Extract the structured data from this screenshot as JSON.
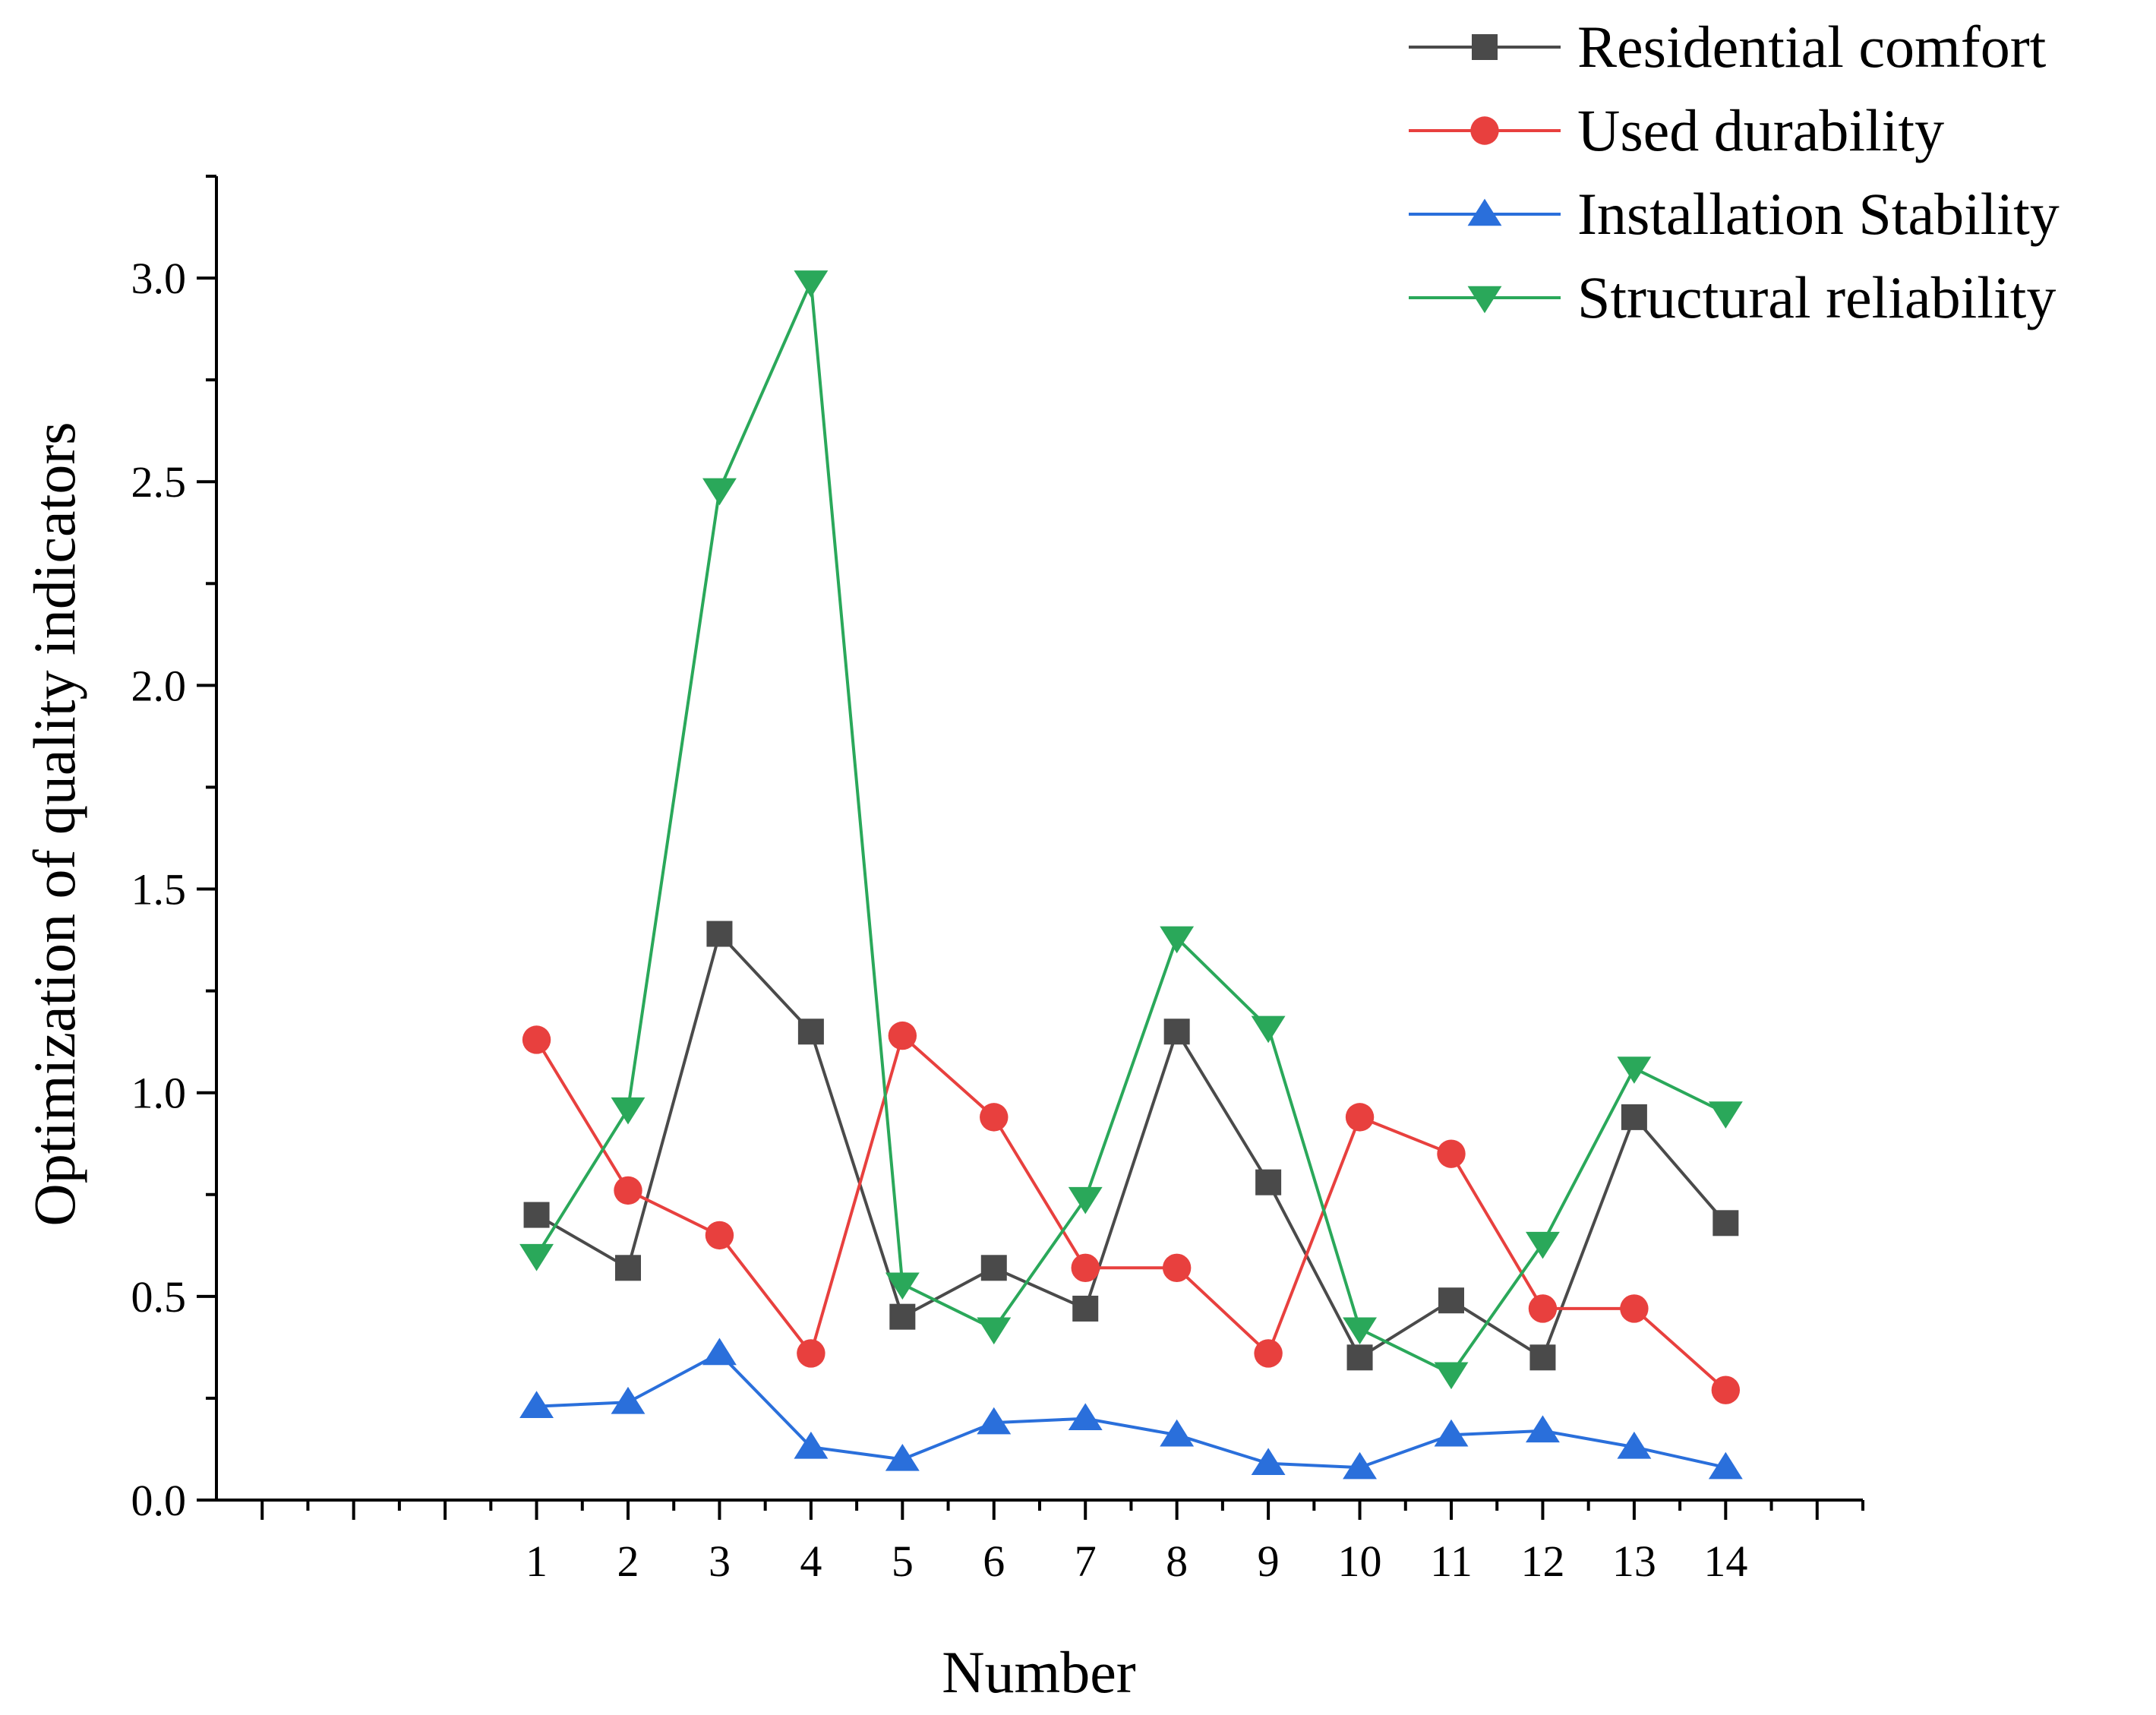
{
  "chart_data": {
    "type": "line",
    "title": "",
    "xlabel": "Number",
    "ylabel": "Optimization of quality indicators",
    "categories": [
      "1",
      "2",
      "3",
      "4",
      "5",
      "6",
      "7",
      "8",
      "9",
      "10",
      "11",
      "12",
      "13",
      "14"
    ],
    "x": [
      1,
      2,
      3,
      4,
      5,
      6,
      7,
      8,
      9,
      10,
      11,
      12,
      13,
      14
    ],
    "xlim": [
      -2.5,
      15.5
    ],
    "ylim": [
      0,
      3.25
    ],
    "yticks": [
      0.0,
      0.5,
      1.0,
      1.5,
      2.0,
      2.5,
      3.0
    ],
    "ytick_labels": [
      "0.0",
      "0.5",
      "1.0",
      "1.5",
      "2.0",
      "2.5",
      "3.0"
    ],
    "grid": false,
    "legend_position": "top-right",
    "series": [
      {
        "name": "Residential comfort",
        "color": "#4a4a4a",
        "marker": "square",
        "values": [
          0.7,
          0.57,
          1.39,
          1.15,
          0.45,
          0.57,
          0.47,
          1.15,
          0.78,
          0.35,
          0.49,
          0.35,
          0.94,
          0.68
        ]
      },
      {
        "name": "Used durability",
        "color": "#e8403e",
        "marker": "circle",
        "values": [
          1.13,
          0.76,
          0.65,
          0.36,
          1.14,
          0.94,
          0.57,
          0.57,
          0.36,
          0.94,
          0.85,
          0.47,
          0.47,
          0.27
        ]
      },
      {
        "name": "Installation Stability",
        "color": "#2a6fdb",
        "marker": "triangle-up",
        "values": [
          0.23,
          0.24,
          0.36,
          0.13,
          0.1,
          0.19,
          0.2,
          0.16,
          0.09,
          0.08,
          0.16,
          0.17,
          0.13,
          0.08
        ]
      },
      {
        "name": "Structural reliability",
        "color": "#2aa85a",
        "marker": "triangle-down",
        "values": [
          0.6,
          0.96,
          2.48,
          2.99,
          0.53,
          0.42,
          0.74,
          1.38,
          1.16,
          0.42,
          0.31,
          0.63,
          1.06,
          0.95
        ]
      }
    ]
  }
}
